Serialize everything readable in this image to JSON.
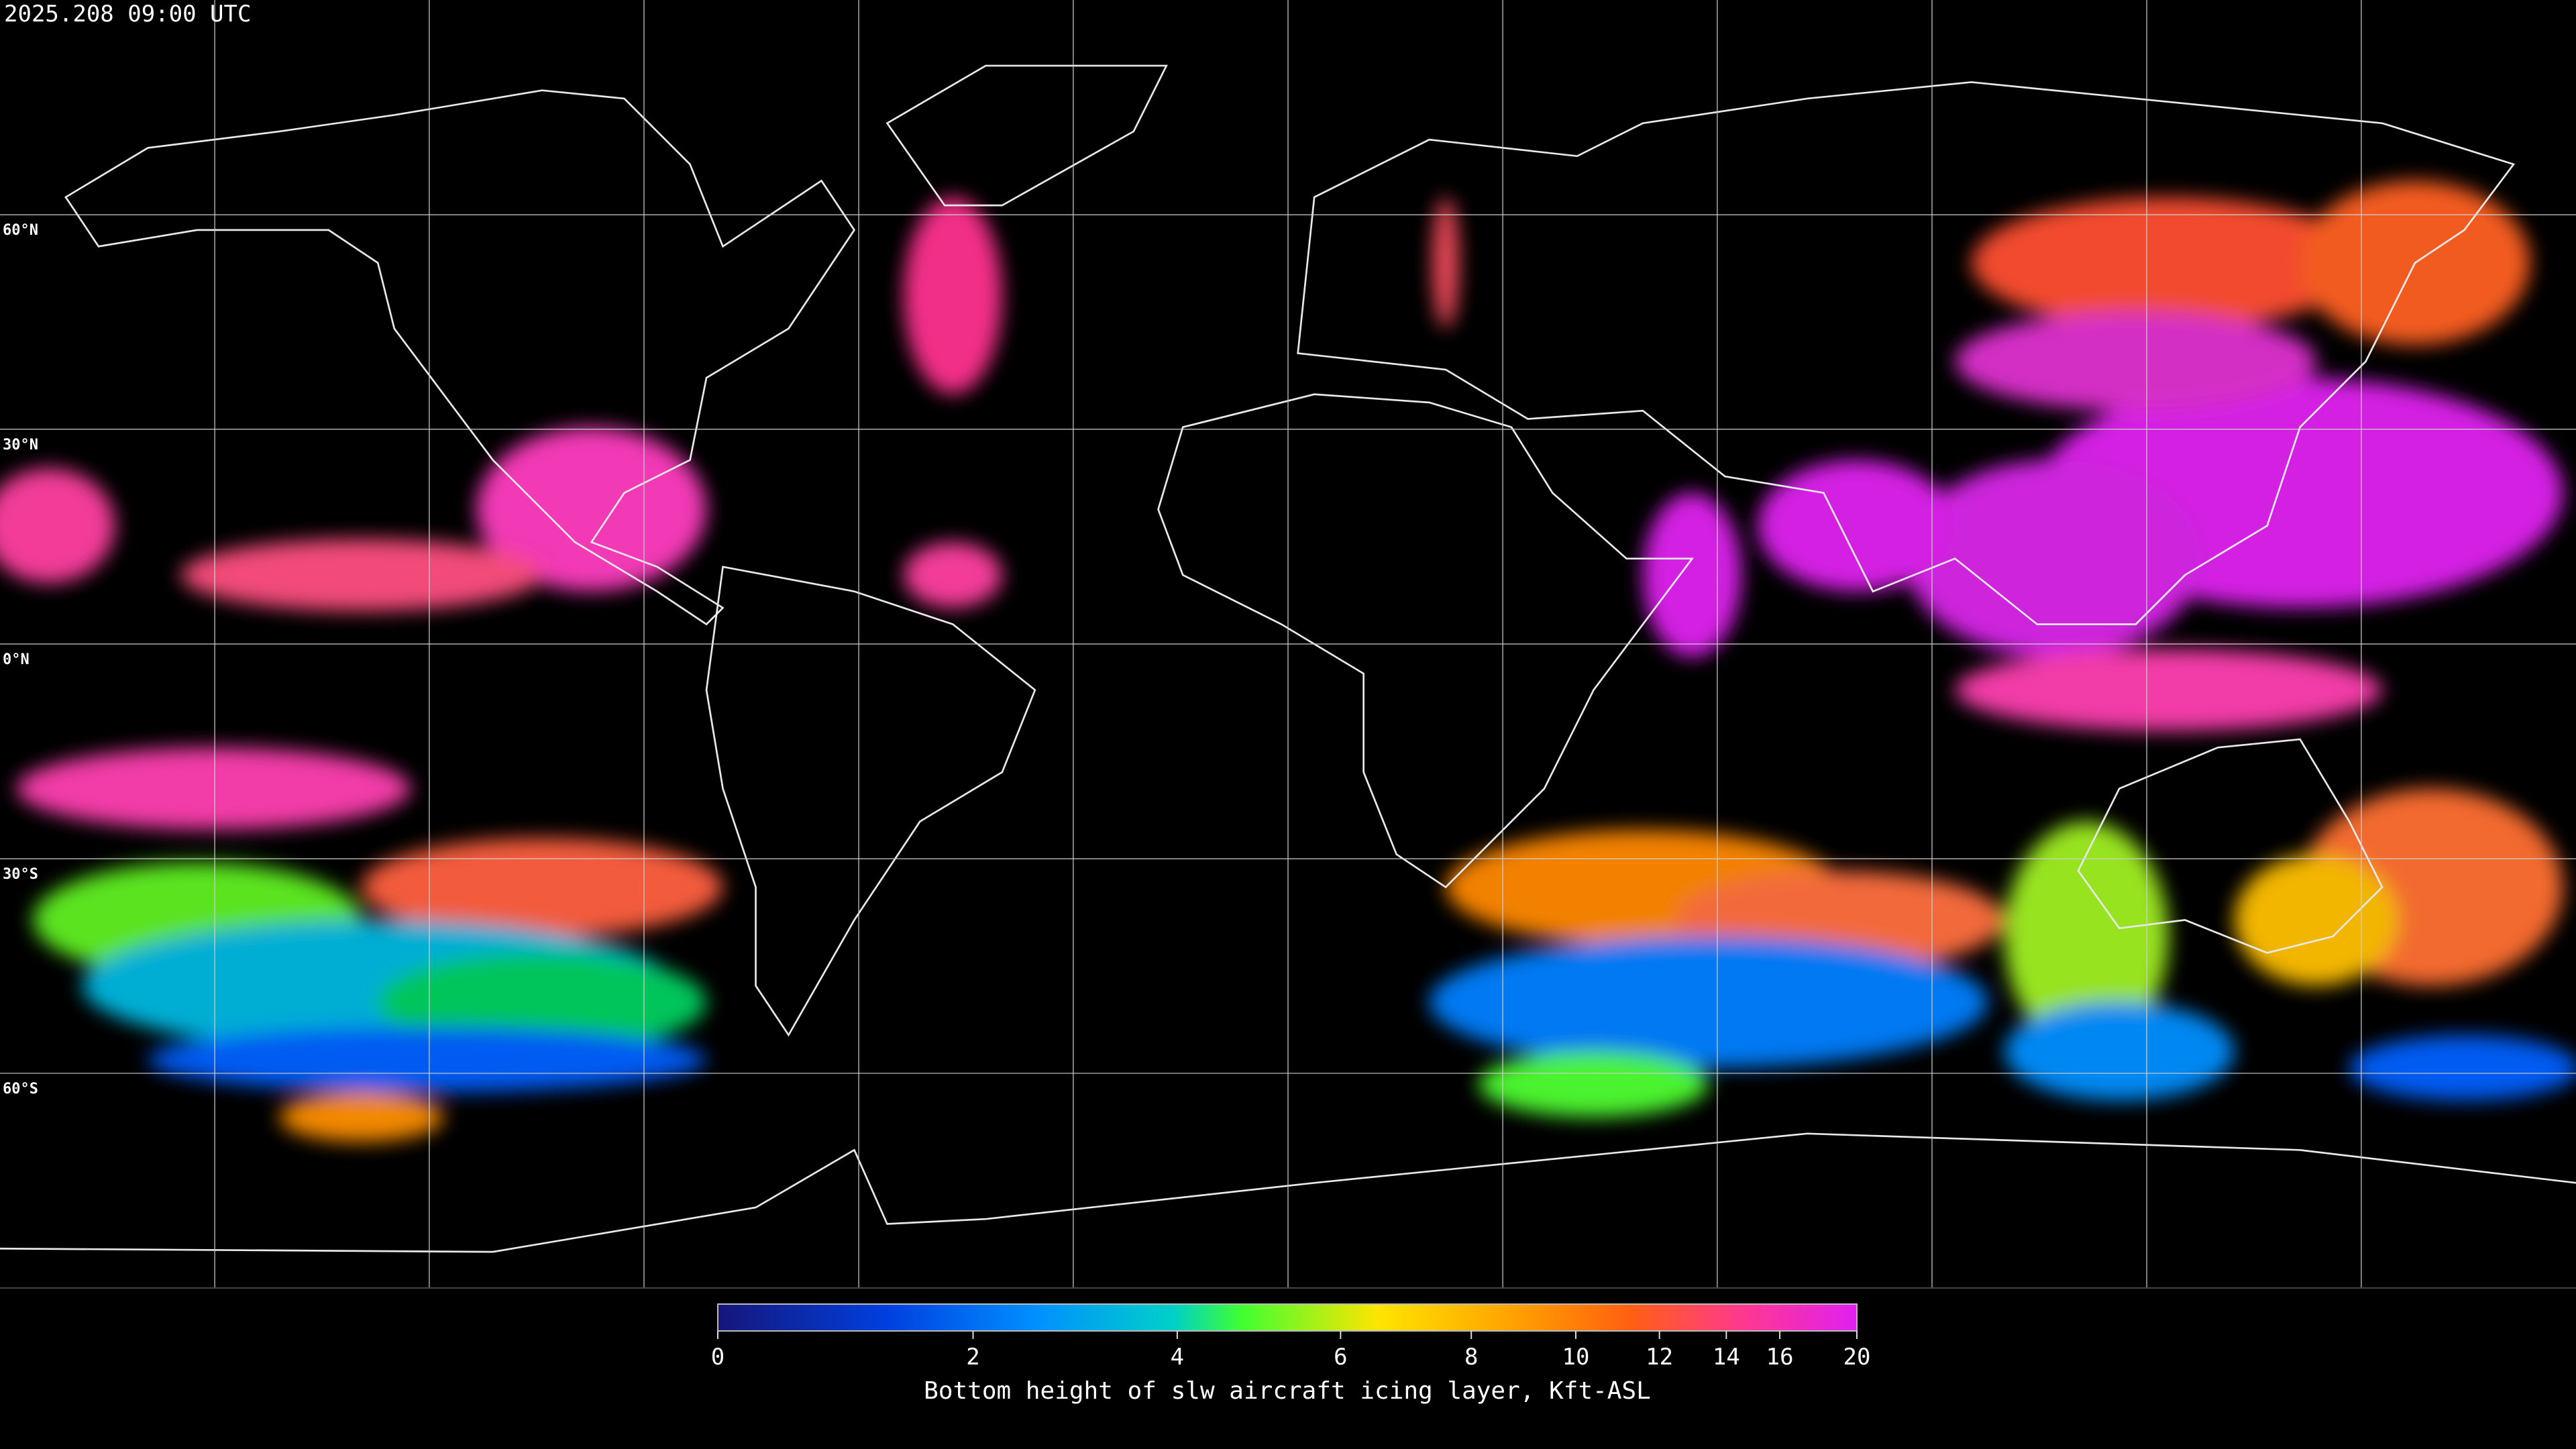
{
  "title": "2025.208 09:00 UTC",
  "latitude_labels": [
    "60°N",
    "30°N",
    "0°N",
    "30°S",
    "60°S"
  ],
  "colorbar": {
    "label": "Bottom height of slw aircraft icing layer, Kft-ASL",
    "xlim": [
      0,
      20
    ],
    "xticks": [
      0,
      2,
      4,
      6,
      8,
      10,
      12,
      14,
      16,
      20
    ]
  }
}
